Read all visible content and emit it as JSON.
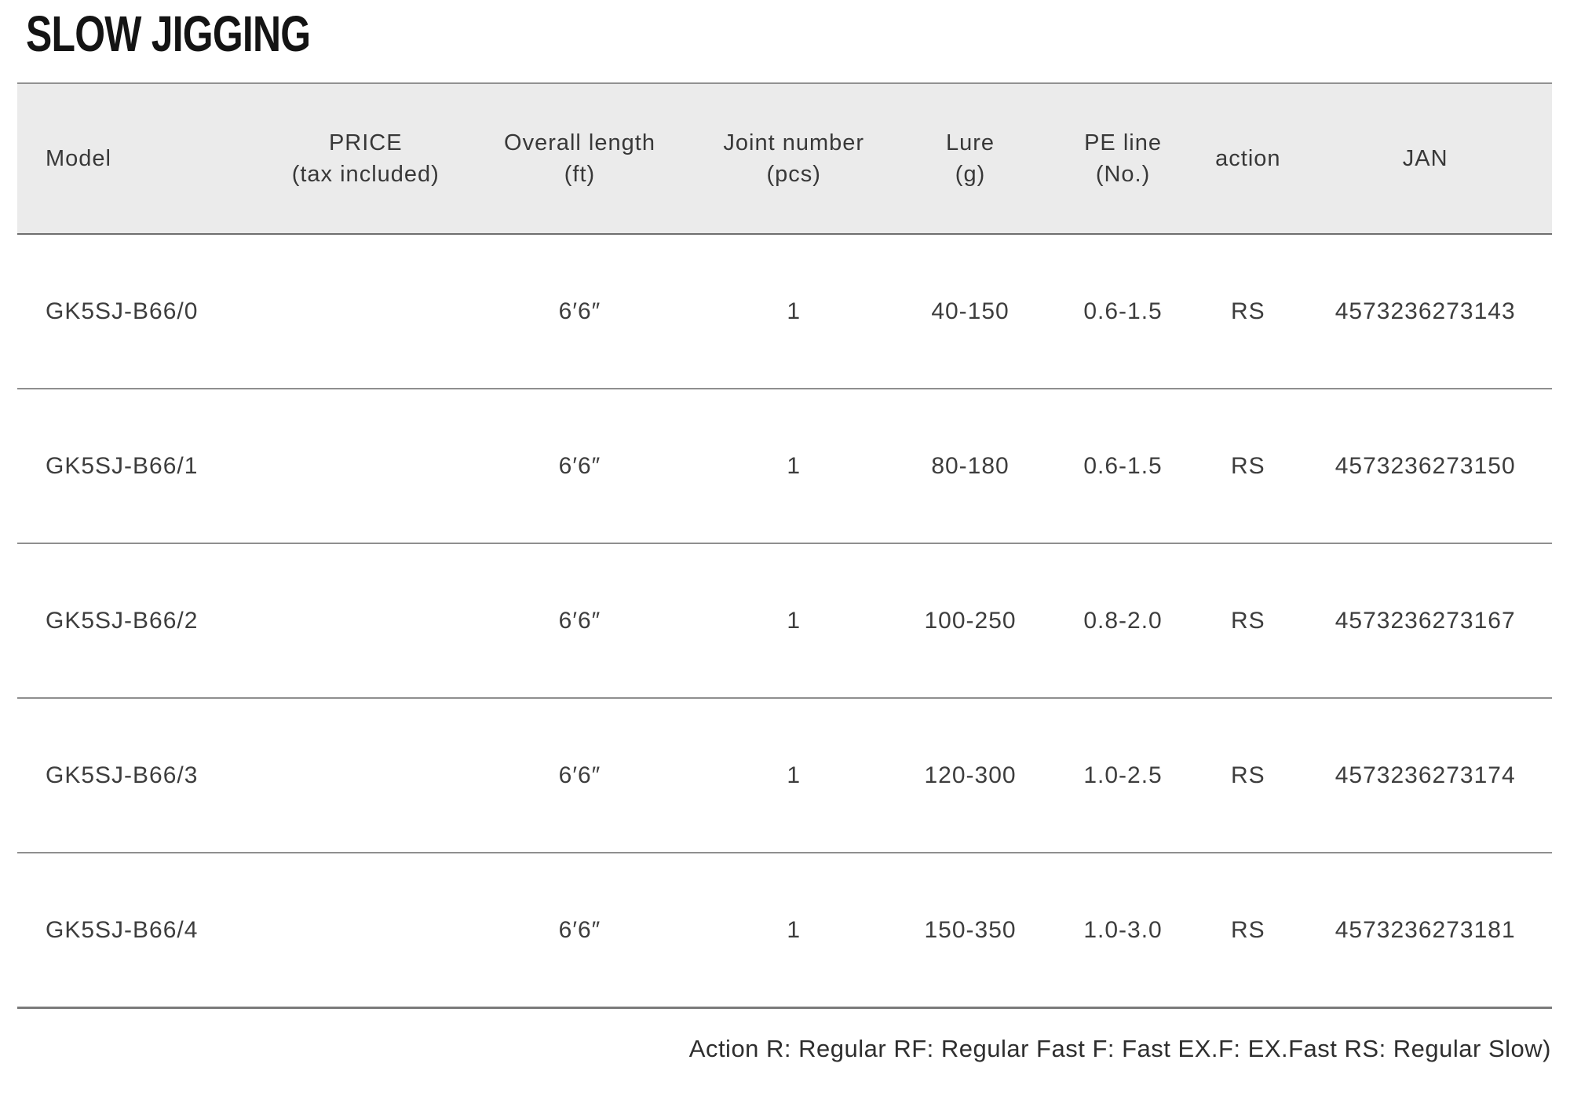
{
  "page": {
    "title": "SLOW JIGGING",
    "footnote": "Action R: Regular RF: Regular Fast F: Fast EX.F: EX.Fast RS: Regular Slow)"
  },
  "table": {
    "columns": [
      {
        "id": "model",
        "label": "Model",
        "sub": ""
      },
      {
        "id": "price",
        "label": "PRICE",
        "sub": "(tax included)"
      },
      {
        "id": "length",
        "label": "Overall length",
        "sub": "(ft)"
      },
      {
        "id": "joint",
        "label": "Joint number",
        "sub": "(pcs)"
      },
      {
        "id": "lure",
        "label": "Lure",
        "sub": "(g)"
      },
      {
        "id": "pe",
        "label": "PE line",
        "sub": "(No.)"
      },
      {
        "id": "action",
        "label": "action",
        "sub": ""
      },
      {
        "id": "jan",
        "label": "JAN",
        "sub": ""
      }
    ],
    "rows": [
      {
        "model": "GK5SJ-B66/0",
        "price": "",
        "length": "6′6″",
        "joint": "1",
        "lure": "40-150",
        "pe": "0.6-1.5",
        "action": "RS",
        "jan": "4573236273143"
      },
      {
        "model": "GK5SJ-B66/1",
        "price": "",
        "length": "6′6″",
        "joint": "1",
        "lure": "80-180",
        "pe": "0.6-1.5",
        "action": "RS",
        "jan": "4573236273150"
      },
      {
        "model": "GK5SJ-B66/2",
        "price": "",
        "length": "6′6″",
        "joint": "1",
        "lure": "100-250",
        "pe": "0.8-2.0",
        "action": "RS",
        "jan": "4573236273167"
      },
      {
        "model": "GK5SJ-B66/3",
        "price": "",
        "length": "6′6″",
        "joint": "1",
        "lure": "120-300",
        "pe": "1.0-2.5",
        "action": "RS",
        "jan": "4573236273174"
      },
      {
        "model": "GK5SJ-B66/4",
        "price": "",
        "length": "6′6″",
        "joint": "1",
        "lure": "150-350",
        "pe": "1.0-3.0",
        "action": "RS",
        "jan": "4573236273181"
      }
    ],
    "colors": {
      "header_bg": "#ebebeb",
      "text": "#3d3d3d",
      "border_outer": "#7a7a7a",
      "row_separator": "#8f8f8f"
    }
  }
}
